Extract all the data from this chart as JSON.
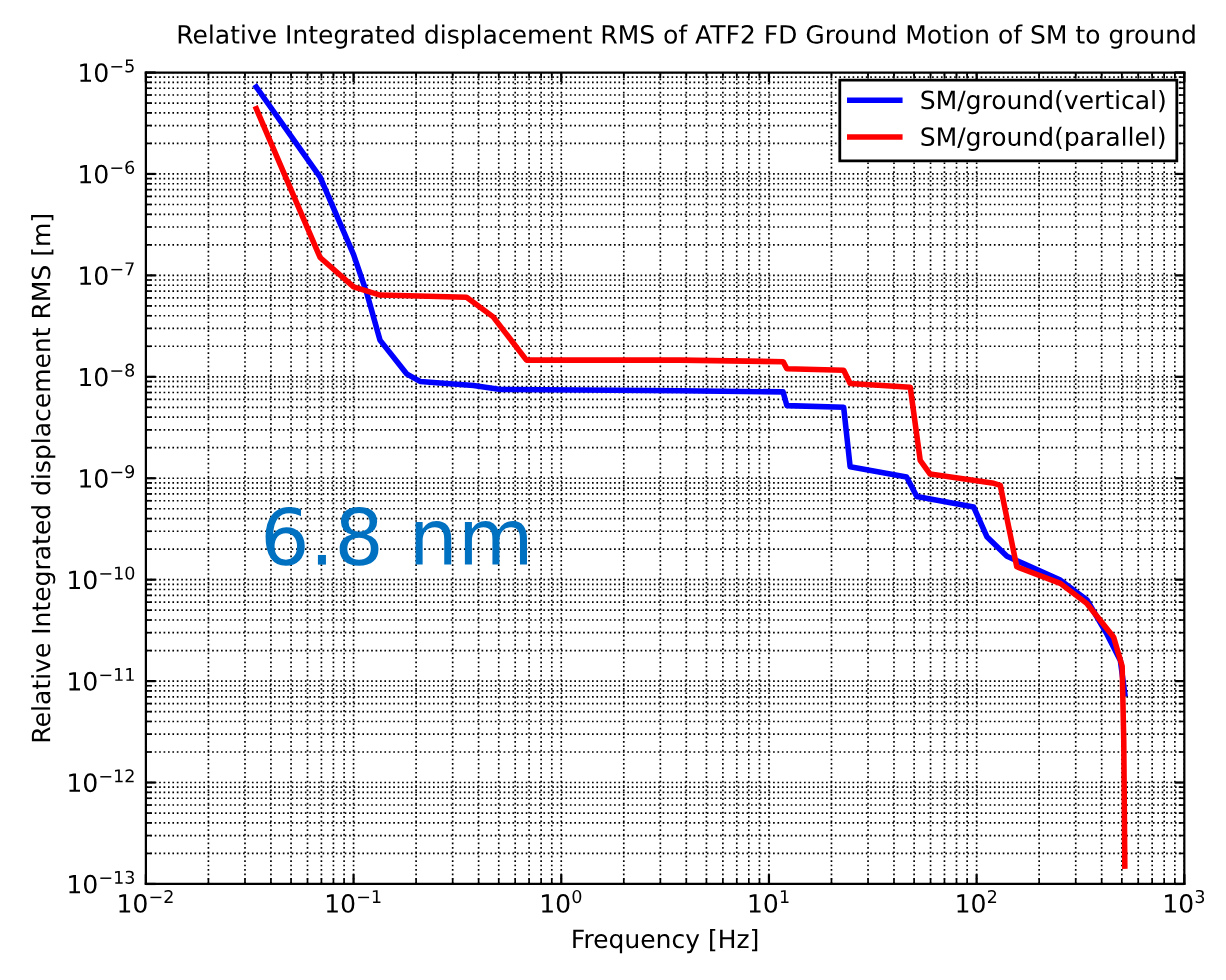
{
  "chart_data": {
    "type": "line",
    "title": "Relative Integrated displacement RMS of ATF2 FD Ground Motion of SM to ground",
    "xlabel": "Frequency [Hz]",
    "ylabel": "Relative Integrated displacement RMS [m]",
    "log": "xy",
    "grid": true,
    "legend": "top right",
    "line_style": "solid",
    "marker": "none",
    "xlim": [
      0.01,
      1000
    ],
    "ylim": [
      1e-13,
      1e-05
    ],
    "xticks": [
      {
        "value": 0.01,
        "label": "10$^{−2}$"
      },
      {
        "value": 0.1,
        "label": "10$^{−1}$"
      },
      {
        "value": 1,
        "label": "10$^{0}$"
      },
      {
        "value": 10,
        "label": "10$^{1}$"
      },
      {
        "value": 100,
        "label": "10$^{2}$"
      },
      {
        "value": 1000,
        "label": "10$^{3}$"
      }
    ],
    "yticks": [
      {
        "value": 1e-13,
        "label": "10$^{−13}$"
      },
      {
        "value": 1e-12,
        "label": "10$^{−12}$"
      },
      {
        "value": 1e-11,
        "label": "10$^{−11}$"
      },
      {
        "value": 1e-10,
        "label": "10$^{−10}$"
      },
      {
        "value": 1e-09,
        "label": "10$^{−9}$"
      },
      {
        "value": 1e-08,
        "label": "10$^{−8}$"
      },
      {
        "value": 1e-07,
        "label": "10$^{−7}$"
      },
      {
        "value": 1e-06,
        "label": "10$^{−6}$"
      },
      {
        "value": 1e-05,
        "label": "10$^{−5}$"
      }
    ],
    "annotations": [
      "6.8 nm"
    ],
    "series": [
      {
        "name": "SM/ground(vertical)",
        "color": "#0000ff",
        "x": [
          0.034,
          0.069,
          0.1,
          0.116,
          0.134,
          0.18,
          0.209,
          0.378,
          0.51,
          3.73,
          11.7,
          12.2,
          22.9,
          24.6,
          46,
          51.5,
          96.8,
          112,
          140,
          168,
          253,
          340,
          424,
          492,
          517
        ],
        "values": [
          7.2e-06,
          9.3e-07,
          1.6e-07,
          6.6e-08,
          2.3e-08,
          1.07e-08,
          9e-09,
          8.2e-09,
          7.5e-09,
          7.3e-09,
          7.1e-09,
          5.2e-09,
          5e-09,
          1.3e-09,
          1.03e-09,
          6.6e-10,
          5.2e-10,
          2.65e-10,
          1.7e-10,
          1.44e-10,
          9.9e-11,
          6.3e-11,
          2.9e-11,
          1.6e-11,
          7.5e-12
        ]
      },
      {
        "name": "SM/ground(parallel)",
        "color": "#ff0000",
        "x": [
          0.034,
          0.069,
          0.1,
          0.134,
          0.35,
          0.47,
          0.68,
          3.73,
          11.7,
          12.2,
          22.9,
          24.6,
          47.9,
          53.5,
          59.7,
          121,
          130,
          145,
          156,
          253,
          340,
          457,
          502,
          511,
          517
        ],
        "values": [
          4.4e-06,
          1.5e-07,
          7.7e-08,
          6.4e-08,
          6.1e-08,
          3.9e-08,
          1.46e-08,
          1.46e-08,
          1.41e-08,
          1.2e-08,
          1.16e-08,
          8.6e-09,
          7.9e-09,
          1.5e-09,
          1.1e-09,
          8.9e-10,
          8.5e-10,
          2.8e-10,
          1.34e-10,
          9.2e-11,
          5.8e-11,
          2.7e-11,
          1.4e-11,
          2.6e-12,
          1.5e-13
        ]
      }
    ]
  }
}
